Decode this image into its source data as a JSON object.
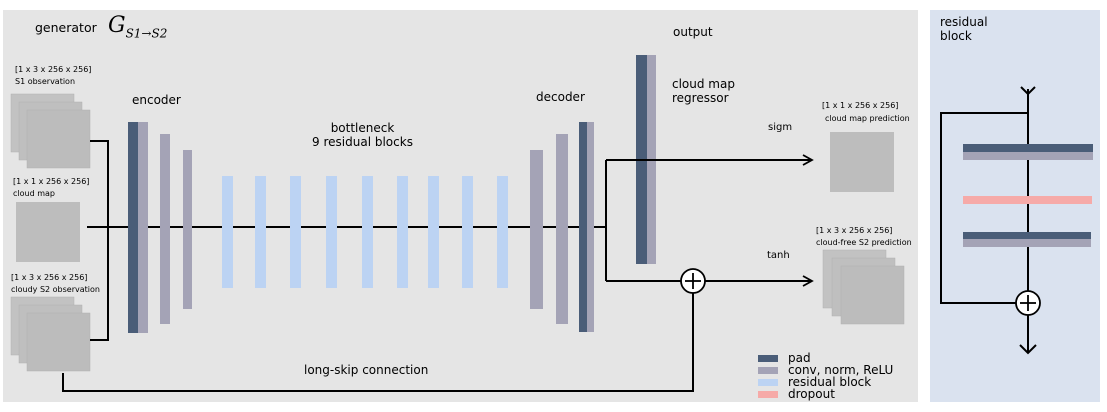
{
  "colors": {
    "pad": "#4a5d78",
    "conv": "#a4a3b6",
    "residual": "#bcd3f3",
    "dropout": "#f6aaa8",
    "panel_bg": "#e5e5e5",
    "residual_panel_bg": "#dae2ef",
    "image_tile": "#bdbdbd",
    "line": "#000000"
  },
  "generator": {
    "label": "generator",
    "symbol_main": "G",
    "symbol_sub": "S1→S2"
  },
  "inputs": {
    "s1": {
      "dims": "[1 x 3 x 256 x 256]",
      "name": "S1 observation"
    },
    "cloud_map": {
      "dims": "[1 x 1 x 256 x 256]",
      "name": "cloud map"
    },
    "cloudy_s2": {
      "dims": "[1 x 3 x 256 x 256]",
      "name": "cloudy S2 observation"
    }
  },
  "stages": {
    "encoder": "encoder",
    "bottleneck_line1": "bottleneck",
    "bottleneck_line2": "9 residual blocks",
    "decoder": "decoder",
    "output": "output",
    "regressor_line1": "cloud map",
    "regressor_line2": "regressor"
  },
  "branches": {
    "sigm": "sigm",
    "tanh": "tanh"
  },
  "outputs": {
    "cloud_map_pred": {
      "dims": "[1 x 1 x 256 x 256]",
      "name": "cloud map prediction"
    },
    "cloudfree_pred": {
      "dims": "[1 x 3 x 256 x 256]",
      "name": "cloud-free S2 prediction"
    }
  },
  "long_skip": "long-skip connection",
  "legend": [
    {
      "key": "pad",
      "label": "pad"
    },
    {
      "key": "conv",
      "label": "conv, norm, ReLU"
    },
    {
      "key": "residual",
      "label": "residual block"
    },
    {
      "key": "dropout",
      "label": "dropout"
    }
  ],
  "residual_block": {
    "title_line1": "residual",
    "title_line2": "block"
  }
}
